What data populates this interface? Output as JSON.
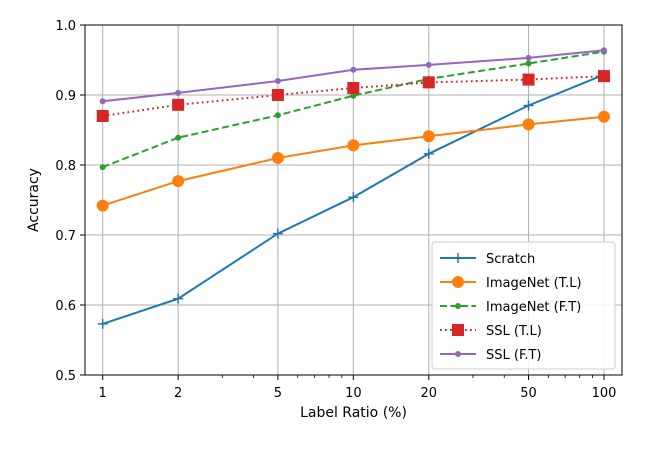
{
  "chart_data": {
    "type": "line",
    "title": "",
    "xlabel": "Label Ratio (%)",
    "ylabel": "Accuracy",
    "xscale": "log",
    "x": [
      1,
      2,
      5,
      10,
      20,
      50,
      100
    ],
    "x_tick_labels": [
      "1",
      "2",
      "5",
      "10",
      "20",
      "50",
      "100"
    ],
    "xlim": [
      0.85,
      118
    ],
    "ylim": [
      0.5,
      1.0
    ],
    "y_ticks": [
      0.5,
      0.6,
      0.7,
      0.8,
      0.9,
      1.0
    ],
    "y_tick_labels": [
      "0.5",
      "0.6",
      "0.7",
      "0.8",
      "0.9",
      "1.0"
    ],
    "grid": true,
    "legend_position": "lower-right",
    "series": [
      {
        "name": "Scratch",
        "values": [
          0.573,
          0.609,
          0.702,
          0.754,
          0.816,
          0.885,
          0.929
        ],
        "color": "#1f77b4",
        "marker": "plus",
        "linestyle": "solid"
      },
      {
        "name": "ImageNet (T.L)",
        "values": [
          0.742,
          0.777,
          0.81,
          0.828,
          0.841,
          0.858,
          0.869
        ],
        "color": "#ff7f0e",
        "marker": "circle",
        "linestyle": "solid"
      },
      {
        "name": "ImageNet (F.T)",
        "values": [
          0.797,
          0.839,
          0.871,
          0.899,
          0.923,
          0.945,
          0.962
        ],
        "color": "#2ca02c",
        "marker": "dot",
        "linestyle": "dashed"
      },
      {
        "name": "SSL (T.L)",
        "values": [
          0.87,
          0.886,
          0.9,
          0.91,
          0.918,
          0.922,
          0.927
        ],
        "color": "#d62728",
        "marker": "square",
        "linestyle": "dotted"
      },
      {
        "name": "SSL (F.T)",
        "values": [
          0.891,
          0.903,
          0.92,
          0.936,
          0.943,
          0.953,
          0.964
        ],
        "color": "#9467bd",
        "marker": "dot",
        "linestyle": "solid"
      }
    ]
  }
}
